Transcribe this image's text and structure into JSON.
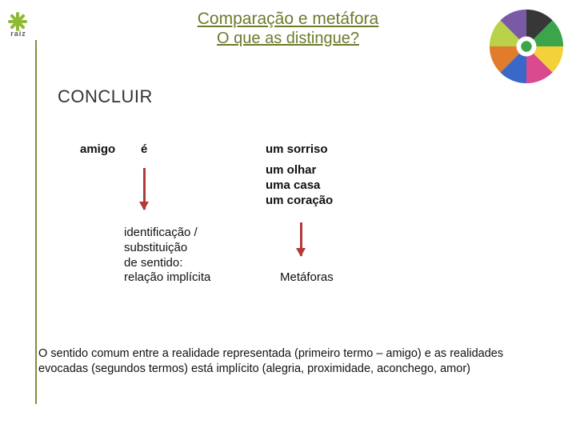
{
  "brand": {
    "name": "raiz"
  },
  "title_line1": "Comparação e metáfora",
  "title_line2": "O que as distingue?",
  "section": "CONCLUIR",
  "col_left": "amigo",
  "verb": "é",
  "right_first": "um sorriso",
  "right_list": [
    "um olhar",
    "uma casa",
    "um coração"
  ],
  "definition": [
    "identificação /",
    "substituição",
    "de sentido:",
    "relação implícita"
  ],
  "result_label": "Metáforas",
  "footnote": "O sentido comum entre a realidade representada (primeiro termo – amigo) e as realidades evocadas (segundos termos) está implícito (alegria, proximidade, aconchego, amor)",
  "colors": {
    "olive": "#6b7b2c",
    "arrow": "#b33a3a",
    "vline": "#7d8f3e",
    "logo_green": "#8fb936"
  },
  "disc_slices": [
    {
      "color": "#373737"
    },
    {
      "color": "#3aa54a"
    },
    {
      "color": "#f3d13a"
    },
    {
      "color": "#d94b8e"
    },
    {
      "color": "#3a68c9"
    },
    {
      "color": "#e07c2b"
    },
    {
      "color": "#b9d24a"
    },
    {
      "color": "#7a5aa6"
    }
  ]
}
